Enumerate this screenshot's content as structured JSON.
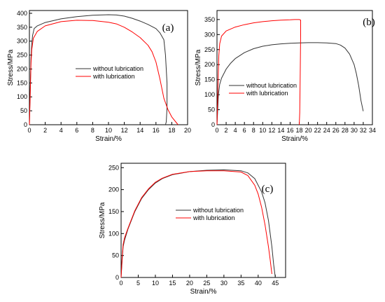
{
  "chart_data": [
    {
      "type": "line",
      "panel_label": "(a)",
      "xlabel": "Strain/%",
      "ylabel": "Stress/MPa",
      "xlim": [
        0,
        20
      ],
      "ylim": [
        0,
        410
      ],
      "xticks": [
        0,
        2,
        4,
        6,
        8,
        10,
        12,
        14,
        16,
        18,
        20
      ],
      "yticks": [
        0,
        50,
        100,
        150,
        200,
        250,
        300,
        350,
        400
      ],
      "legend_position": "center",
      "series": [
        {
          "name": "without lubrication",
          "color": "#333333",
          "x": [
            0,
            0.1,
            0.2,
            0.3,
            0.4,
            0.6,
            1,
            2,
            4,
            6,
            8,
            10,
            11,
            12,
            13,
            14,
            15,
            16,
            16.5,
            17,
            17.2,
            17.4,
            17.4,
            17.3,
            17.2
          ],
          "y": [
            0,
            120,
            240,
            290,
            320,
            345,
            355,
            367,
            380,
            388,
            393,
            395,
            394,
            390,
            382,
            372,
            360,
            345,
            330,
            305,
            250,
            150,
            60,
            10,
            0
          ]
        },
        {
          "name": "with lubrication",
          "color": "#ff0000",
          "x": [
            0,
            0.1,
            0.2,
            0.3,
            0.5,
            1,
            2,
            4,
            6,
            8,
            10,
            11,
            12,
            13,
            14,
            15,
            15.5,
            16,
            16.5,
            17,
            17.5,
            18,
            18.5,
            18.8
          ],
          "y": [
            0,
            100,
            220,
            270,
            310,
            335,
            355,
            370,
            375,
            374,
            368,
            362,
            350,
            333,
            313,
            285,
            262,
            225,
            165,
            95,
            55,
            28,
            10,
            0
          ]
        }
      ]
    },
    {
      "type": "line",
      "panel_label": "(b)",
      "xlabel": "Strain/%",
      "ylabel": "Stress/MPa",
      "xlim": [
        0,
        34
      ],
      "ylim": [
        0,
        380
      ],
      "xticks": [
        0,
        2,
        4,
        6,
        8,
        10,
        12,
        14,
        16,
        18,
        20,
        22,
        24,
        26,
        28,
        30,
        32,
        34
      ],
      "yticks": [
        0,
        50,
        100,
        150,
        200,
        250,
        300,
        350
      ],
      "legend_position": "center",
      "series": [
        {
          "name": "without lubrication",
          "color": "#333333",
          "x": [
            0,
            0.3,
            0.6,
            1,
            2,
            3,
            4,
            6,
            8,
            10,
            12,
            14,
            16,
            18,
            20,
            22,
            24,
            26,
            27,
            28,
            29,
            30,
            30.5,
            31,
            31.5,
            32
          ],
          "y": [
            0,
            100,
            135,
            155,
            185,
            205,
            220,
            240,
            253,
            261,
            266,
            269,
            271,
            272,
            273,
            273,
            272,
            270,
            265,
            255,
            235,
            200,
            170,
            130,
            80,
            45
          ]
        },
        {
          "name": "with lubrication",
          "color": "#ff0000",
          "x": [
            0,
            0.2,
            0.4,
            0.6,
            1,
            2,
            4,
            6,
            8,
            10,
            12,
            14,
            16,
            17,
            18,
            18.3,
            18.3,
            18.2,
            18.1,
            18.0
          ],
          "y": [
            0,
            120,
            230,
            270,
            295,
            312,
            325,
            333,
            339,
            343,
            346,
            348,
            349,
            350,
            350,
            348,
            300,
            150,
            40,
            0
          ]
        }
      ]
    },
    {
      "type": "line",
      "panel_label": "(c)",
      "xlabel": "Strain/%",
      "ylabel": "Stress/MPa",
      "xlim": [
        0,
        48
      ],
      "ylim": [
        0,
        260
      ],
      "xticks": [
        0,
        5,
        10,
        15,
        20,
        25,
        30,
        35,
        40,
        45
      ],
      "yticks": [
        0,
        50,
        100,
        150,
        200,
        250
      ],
      "legend_position": "center",
      "series": [
        {
          "name": "without lubrication",
          "color": "#333333",
          "x": [
            0,
            0.3,
            0.6,
            1,
            2,
            4,
            6,
            8,
            10,
            12,
            15,
            20,
            25,
            30,
            35,
            37,
            39,
            41,
            42,
            43,
            44,
            44.5,
            45
          ],
          "y": [
            0,
            40,
            70,
            85,
            110,
            150,
            180,
            200,
            215,
            225,
            234,
            241,
            244,
            245,
            243,
            238,
            225,
            195,
            170,
            130,
            70,
            30,
            0
          ]
        },
        {
          "name": "with lubrication",
          "color": "#ff0000",
          "x": [
            0,
            0.3,
            0.6,
            1,
            2,
            4,
            6,
            8,
            10,
            12,
            15,
            20,
            25,
            30,
            35,
            37,
            39,
            40,
            41,
            42,
            43,
            43.5,
            44
          ],
          "y": [
            0,
            45,
            75,
            90,
            112,
            152,
            182,
            202,
            217,
            226,
            235,
            241,
            243,
            243,
            240,
            232,
            210,
            190,
            160,
            120,
            70,
            40,
            8
          ]
        }
      ]
    }
  ]
}
